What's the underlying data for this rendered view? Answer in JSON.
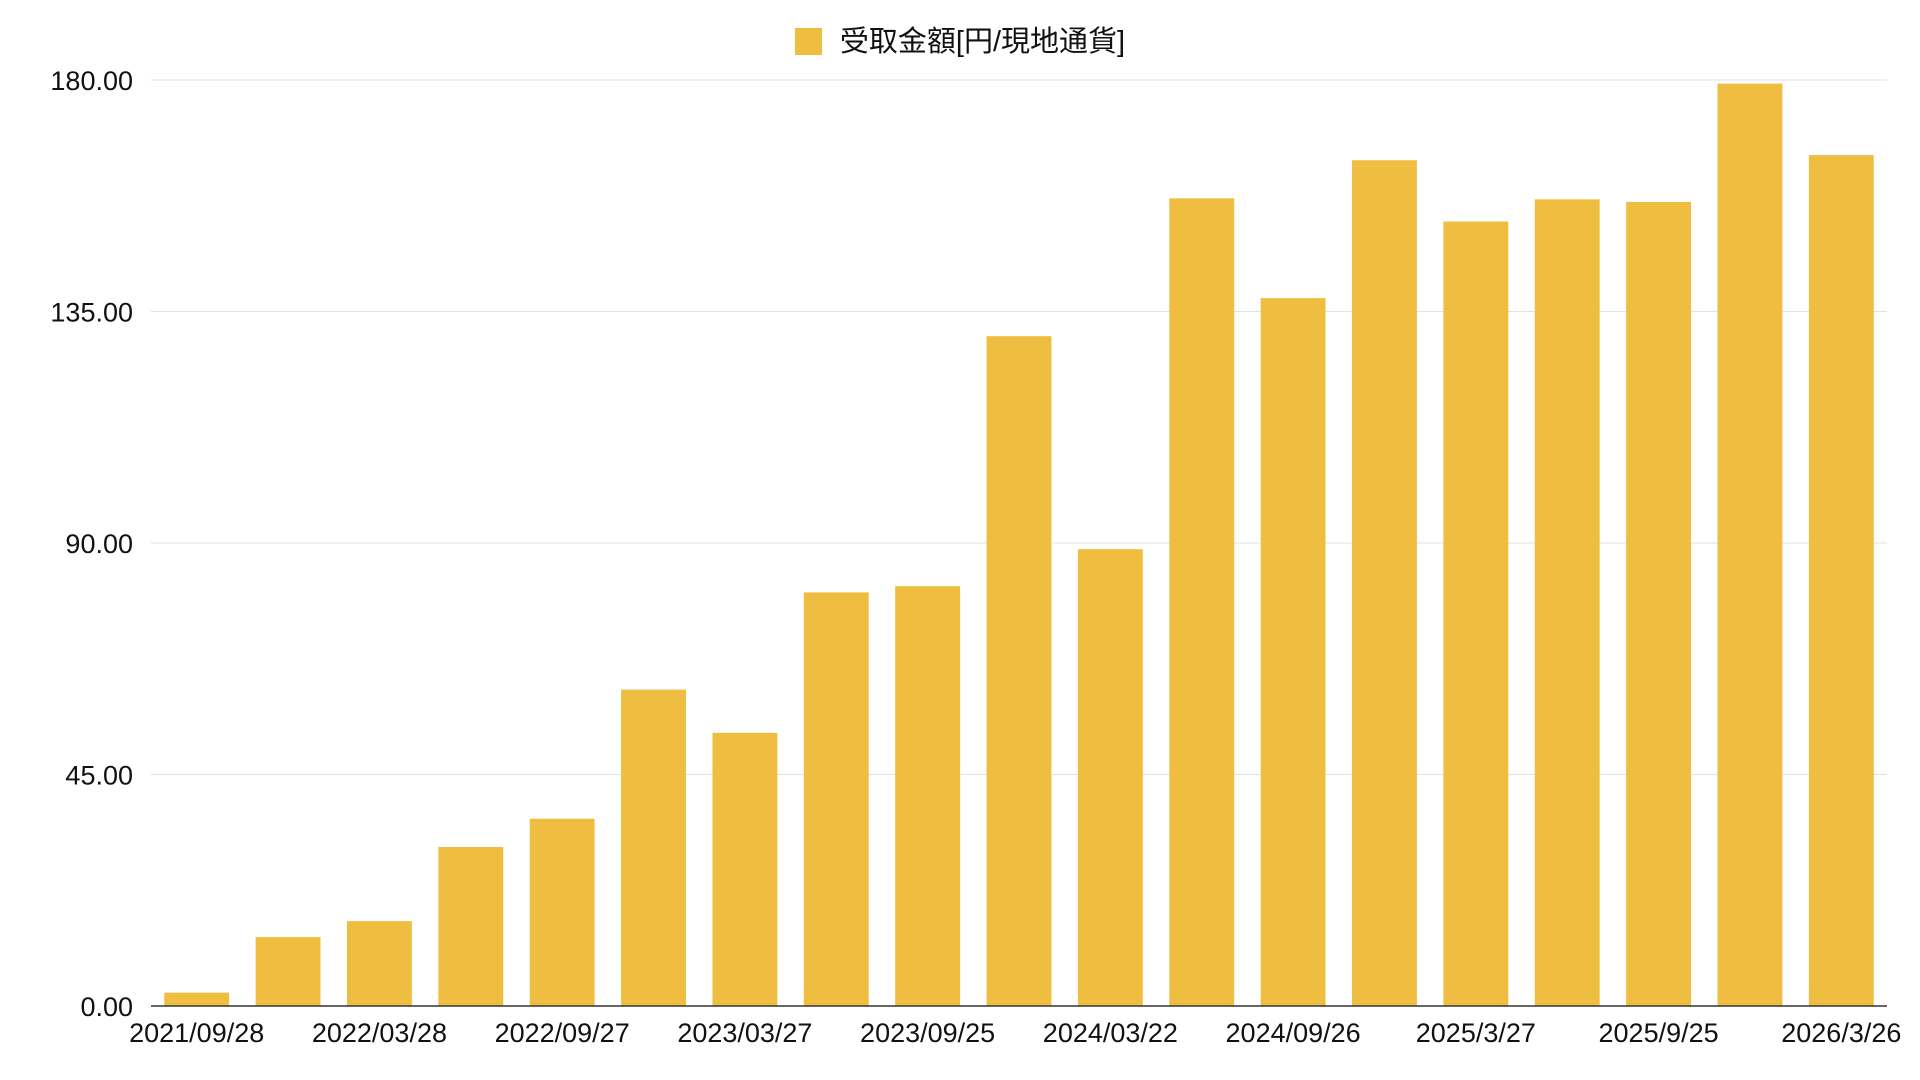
{
  "chart_data": {
    "type": "bar",
    "title": "",
    "legend": {
      "position": "top",
      "entries": [
        "受取金額[円/現地通貨]"
      ]
    },
    "series": [
      {
        "name": "受取金額[円/現地通貨]",
        "color": "#EFBE40",
        "values": [
          2.6,
          13.4,
          16.5,
          30.9,
          36.4,
          61.5,
          53.1,
          80.4,
          81.6,
          130.2,
          88.8,
          157.0,
          137.6,
          164.4,
          152.5,
          156.8,
          156.3,
          179.3,
          165.4
        ]
      }
    ],
    "x_tick_labels": [
      "2021/09/28",
      "",
      "2022/03/28",
      "",
      "2022/09/27",
      "",
      "2023/03/27",
      "",
      "2023/09/25",
      "",
      "2024/03/22",
      "",
      "2024/09/26",
      "",
      "2025/3/27",
      "",
      "2025/9/25",
      "",
      "2026/3/26"
    ],
    "y_ticks": [
      "0.00",
      "45.00",
      "90.00",
      "135.00",
      "180.00"
    ],
    "ylim": [
      0,
      180
    ],
    "xlabel": "",
    "ylabel": "",
    "grid": true
  }
}
